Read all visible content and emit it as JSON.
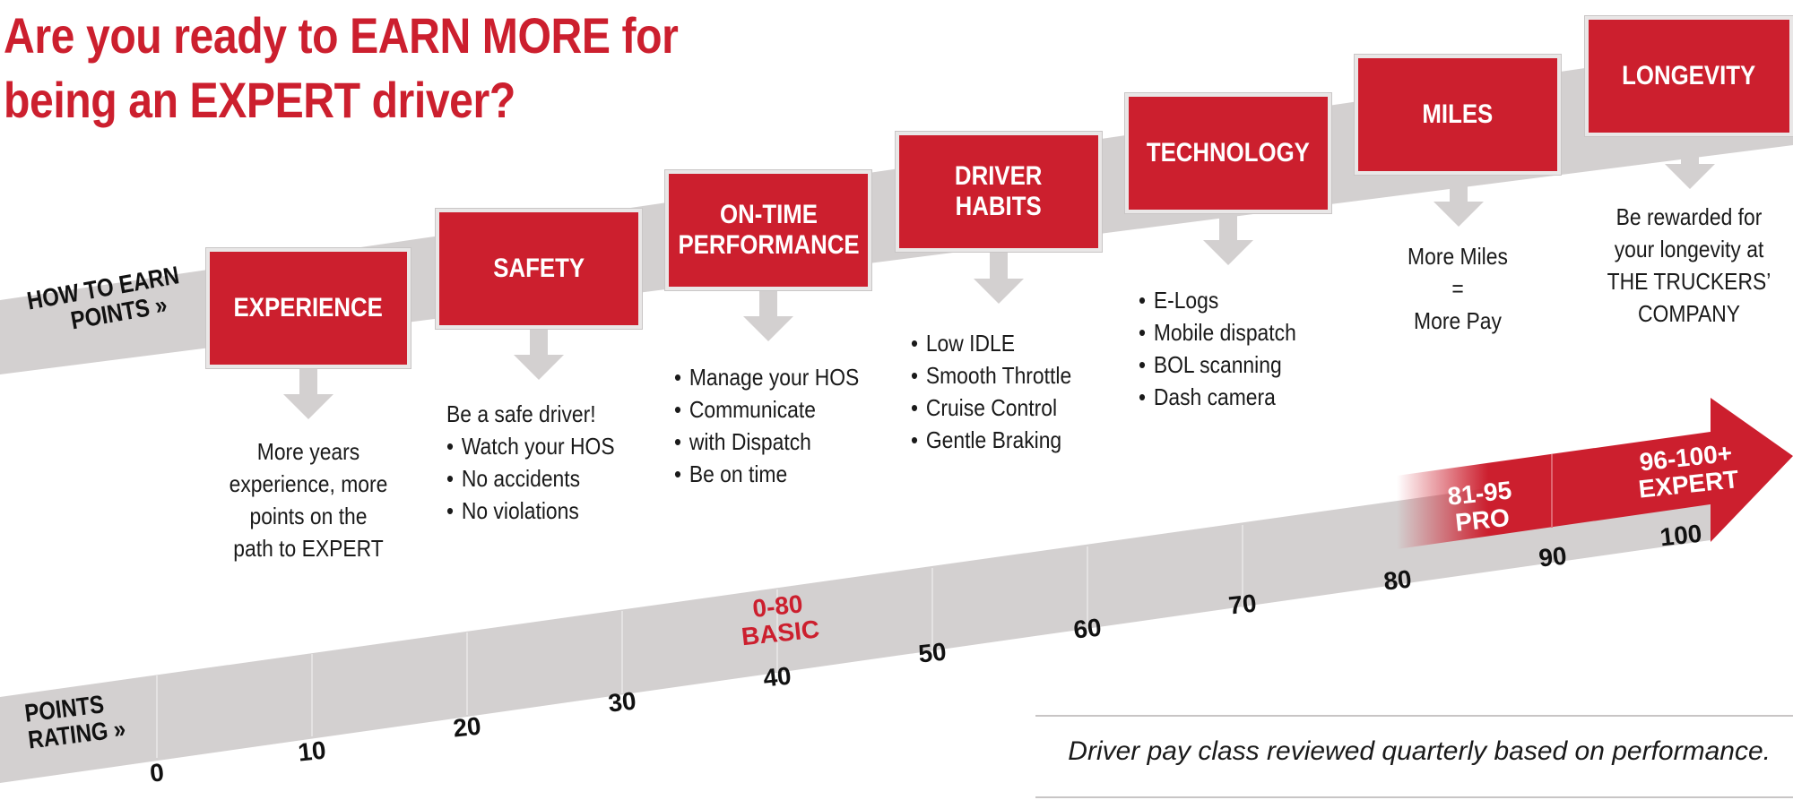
{
  "headline": {
    "line1": "Are you ready to EARN MORE for",
    "line2": "being an EXPERT driver?"
  },
  "earn_band": {
    "label_line1": "HOW TO EARN",
    "label_line2": "POINTS »"
  },
  "steps": [
    {
      "title": "EXPERIENCE",
      "desc_lines": [
        "More years",
        "experience, more",
        "points on the",
        "path to EXPERT"
      ]
    },
    {
      "title": "SAFETY",
      "intro": "Be a safe driver!",
      "bullets": [
        "Watch your HOS",
        "No accidents",
        "No violations"
      ]
    },
    {
      "title": "ON-TIME\nPERFORMANCE",
      "bullets": [
        "Manage your HOS",
        "Communicate",
        "Be on time"
      ],
      "bullet2_cont": "with Dispatch"
    },
    {
      "title": "DRIVER\nHABITS",
      "bullets": [
        "Low IDLE",
        "Smooth Throttle",
        "Cruise Control",
        "Gentle Braking"
      ]
    },
    {
      "title": "TECHNOLOGY",
      "bullets": [
        "E-Logs",
        "Mobile dispatch",
        "BOL scanning",
        "Dash camera"
      ]
    },
    {
      "title": "MILES",
      "desc_lines": [
        "More Miles",
        "=",
        "More Pay"
      ]
    },
    {
      "title": "LONGEVITY",
      "desc_lines": [
        "Be rewarded for",
        "your longevity at",
        "THE TRUCKERS’",
        "COMPANY"
      ]
    }
  ],
  "rating_band": {
    "label_line1": "POINTS",
    "label_line2": "RATING »",
    "ticks": [
      "0",
      "10",
      "20",
      "30",
      "40",
      "50",
      "60",
      "70",
      "80",
      "90",
      "100"
    ],
    "tiers": [
      {
        "range": "0-80",
        "name": "BASIC"
      },
      {
        "range": "81-95",
        "name": "PRO"
      },
      {
        "range": "96-100+",
        "name": "EXPERT"
      }
    ]
  },
  "note": "Driver pay class reviewed quarterly based on performance.",
  "colors": {
    "brand_red": "#cc1f2e",
    "band_gray": "#d3d0d0",
    "text_dark": "#111111"
  }
}
